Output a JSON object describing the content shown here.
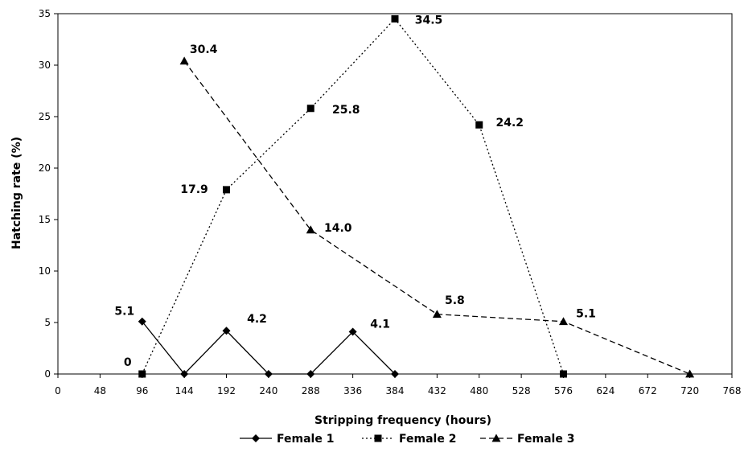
{
  "chart_data": {
    "type": "line",
    "xlabel": "Stripping frequency (hours)",
    "ylabel": "Hatching rate (%)",
    "xlim": [
      0,
      768
    ],
    "ylim": [
      0,
      35
    ],
    "x_ticks": [
      "0",
      "48",
      "96",
      "144",
      "192",
      "240",
      "288",
      "336",
      "384",
      "432",
      "480",
      "528",
      "576",
      "624",
      "672",
      "720",
      "768"
    ],
    "y_ticks": [
      "0",
      "5",
      "10",
      "15",
      "20",
      "25",
      "30",
      "35"
    ],
    "grid": false,
    "legend_position": "bottom",
    "series": [
      {
        "name": "Female 1",
        "marker": "diamond",
        "line_style": "solid",
        "color": "#000000",
        "x": [
          96,
          144,
          192,
          240,
          288,
          336,
          384
        ],
        "y": [
          5.1,
          0,
          4.2,
          0,
          0,
          4.1,
          0
        ],
        "labels": [
          "5.1",
          "",
          "4.2",
          "",
          "",
          "4.1",
          ""
        ]
      },
      {
        "name": "Female 2",
        "marker": "square",
        "line_style": "dotted",
        "color": "#000000",
        "x": [
          96,
          192,
          288,
          384,
          480,
          576
        ],
        "y": [
          0,
          17.9,
          25.8,
          34.5,
          24.2,
          0
        ],
        "labels": [
          "0",
          "17.9",
          "25.8",
          "34.5",
          "24.2",
          ""
        ]
      },
      {
        "name": "Female 3",
        "marker": "triangle",
        "line_style": "dashed",
        "color": "#000000",
        "x": [
          144,
          288,
          432,
          576,
          720
        ],
        "y": [
          30.4,
          14.0,
          5.8,
          5.1,
          0
        ],
        "labels": [
          "30.4",
          "14.0",
          "5.8",
          "5.1",
          ""
        ]
      }
    ]
  }
}
